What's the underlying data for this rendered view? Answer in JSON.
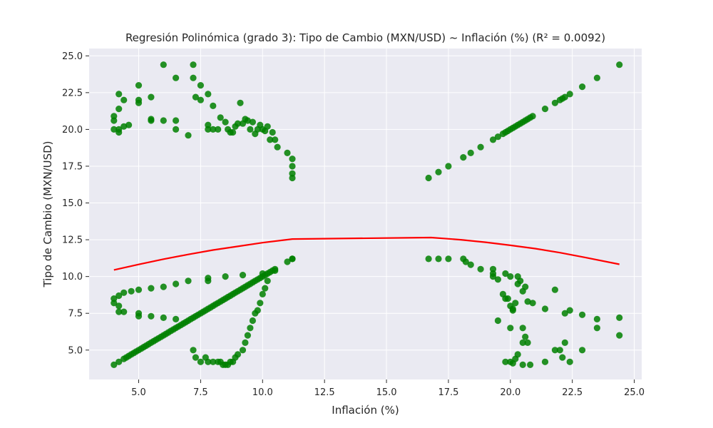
{
  "chart_data": {
    "type": "scatter",
    "title": "Regresión Polinómica (grado 3): Tipo de Cambio (MXN/USD) ~ Inflación (%) (R² = 0.0092)",
    "xlabel": "Inflación (%)",
    "ylabel": "Tipo de Cambio (MXN/USD)",
    "xlim": [
      3.0,
      25.3
    ],
    "ylim": [
      3.0,
      25.5
    ],
    "xticks": [
      5.0,
      7.5,
      10.0,
      12.5,
      15.0,
      17.5,
      20.0,
      22.5,
      25.0
    ],
    "xtick_labels": [
      "5.0",
      "7.5",
      "10.0",
      "12.5",
      "15.0",
      "17.5",
      "20.0",
      "22.5",
      "25.0"
    ],
    "yticks": [
      5.0,
      7.5,
      10.0,
      12.5,
      15.0,
      17.5,
      20.0,
      22.5,
      25.0
    ],
    "ytick_labels": [
      "5.0",
      "7.5",
      "10.0",
      "12.5",
      "15.0",
      "17.5",
      "20.0",
      "22.5",
      "25.0"
    ],
    "grid": true,
    "colors": {
      "background": "#eaeaf2",
      "grid": "#ffffff",
      "points": "#008000",
      "curve": "#ff0000"
    },
    "series": [
      {
        "kind": "scatter",
        "points": [
          [
            4.0,
            4.0
          ],
          [
            4.2,
            4.2
          ],
          [
            4.4,
            4.4
          ],
          [
            4.5,
            4.5
          ],
          [
            4.6,
            4.6
          ],
          [
            4.7,
            4.7
          ],
          [
            4.8,
            4.8
          ],
          [
            4.9,
            4.9
          ],
          [
            5.0,
            5.0
          ],
          [
            5.1,
            5.1
          ],
          [
            5.2,
            5.2
          ],
          [
            5.3,
            5.3
          ],
          [
            5.4,
            5.4
          ],
          [
            5.5,
            5.5
          ],
          [
            5.6,
            5.6
          ],
          [
            5.7,
            5.7
          ],
          [
            5.8,
            5.8
          ],
          [
            5.9,
            5.9
          ],
          [
            6.0,
            6.0
          ],
          [
            6.1,
            6.1
          ],
          [
            6.2,
            6.2
          ],
          [
            6.3,
            6.3
          ],
          [
            6.4,
            6.4
          ],
          [
            6.5,
            6.5
          ],
          [
            6.6,
            6.6
          ],
          [
            6.7,
            6.7
          ],
          [
            6.8,
            6.8
          ],
          [
            6.9,
            6.9
          ],
          [
            7.0,
            7.0
          ],
          [
            7.1,
            7.1
          ],
          [
            7.2,
            7.2
          ],
          [
            7.3,
            7.3
          ],
          [
            7.4,
            7.4
          ],
          [
            7.5,
            7.5
          ],
          [
            7.6,
            7.6
          ],
          [
            7.7,
            7.7
          ],
          [
            7.8,
            7.8
          ],
          [
            7.9,
            7.9
          ],
          [
            8.0,
            8.0
          ],
          [
            8.1,
            8.1
          ],
          [
            8.2,
            8.2
          ],
          [
            8.3,
            8.3
          ],
          [
            8.4,
            8.4
          ],
          [
            8.5,
            8.5
          ],
          [
            8.6,
            8.6
          ],
          [
            8.7,
            8.7
          ],
          [
            8.8,
            8.8
          ],
          [
            8.9,
            8.9
          ],
          [
            9.0,
            9.0
          ],
          [
            9.1,
            9.1
          ],
          [
            9.2,
            9.2
          ],
          [
            9.3,
            9.3
          ],
          [
            9.4,
            9.4
          ],
          [
            9.5,
            9.5
          ],
          [
            9.6,
            9.6
          ],
          [
            9.7,
            9.7
          ],
          [
            9.8,
            9.8
          ],
          [
            9.9,
            9.9
          ],
          [
            10.0,
            10.0
          ],
          [
            10.1,
            10.1
          ],
          [
            10.2,
            10.2
          ],
          [
            10.3,
            10.3
          ],
          [
            10.4,
            10.4
          ],
          [
            10.5,
            10.5
          ],
          [
            11.0,
            11.0
          ],
          [
            11.2,
            11.2
          ],
          [
            4.0,
            8.5
          ],
          [
            4.0,
            8.2
          ],
          [
            4.2,
            8.0
          ],
          [
            4.2,
            7.6
          ],
          [
            4.2,
            8.7
          ],
          [
            4.4,
            7.6
          ],
          [
            4.4,
            8.9
          ],
          [
            4.7,
            9.0
          ],
          [
            5.0,
            9.1
          ],
          [
            5.0,
            7.5
          ],
          [
            5.0,
            7.3
          ],
          [
            5.5,
            9.2
          ],
          [
            5.5,
            7.3
          ],
          [
            6.0,
            9.3
          ],
          [
            6.0,
            7.2
          ],
          [
            6.5,
            9.5
          ],
          [
            6.5,
            7.1
          ],
          [
            7.0,
            9.7
          ],
          [
            7.8,
            9.9
          ],
          [
            7.8,
            9.7
          ],
          [
            8.5,
            10.0
          ],
          [
            9.2,
            10.1
          ],
          [
            10.0,
            10.2
          ],
          [
            10.5,
            10.4
          ],
          [
            11.2,
            11.2
          ],
          [
            7.2,
            5.0
          ],
          [
            7.3,
            4.5
          ],
          [
            7.5,
            4.2
          ],
          [
            7.7,
            4.5
          ],
          [
            7.8,
            4.2
          ],
          [
            8.0,
            4.2
          ],
          [
            8.2,
            4.2
          ],
          [
            8.3,
            4.2
          ],
          [
            8.4,
            4.0
          ],
          [
            8.5,
            4.0
          ],
          [
            8.6,
            4.0
          ],
          [
            8.7,
            4.2
          ],
          [
            8.8,
            4.2
          ],
          [
            8.9,
            4.5
          ],
          [
            9.0,
            4.7
          ],
          [
            9.2,
            5.0
          ],
          [
            9.3,
            5.5
          ],
          [
            9.4,
            6.0
          ],
          [
            9.5,
            6.5
          ],
          [
            9.6,
            7.0
          ],
          [
            9.7,
            7.5
          ],
          [
            9.8,
            7.7
          ],
          [
            9.9,
            8.2
          ],
          [
            10.0,
            8.8
          ],
          [
            10.1,
            9.2
          ],
          [
            10.2,
            9.7
          ],
          [
            4.0,
            20.0
          ],
          [
            4.0,
            20.6
          ],
          [
            4.0,
            20.9
          ],
          [
            4.2,
            19.8
          ],
          [
            4.2,
            20.0
          ],
          [
            4.2,
            21.4
          ],
          [
            4.2,
            22.4
          ],
          [
            4.4,
            20.2
          ],
          [
            4.4,
            22.0
          ],
          [
            4.6,
            20.3
          ],
          [
            5.0,
            23.0
          ],
          [
            5.0,
            22.0
          ],
          [
            5.0,
            21.8
          ],
          [
            5.5,
            22.2
          ],
          [
            5.5,
            20.7
          ],
          [
            5.5,
            20.6
          ],
          [
            6.0,
            24.4
          ],
          [
            6.0,
            20.6
          ],
          [
            6.5,
            23.5
          ],
          [
            6.5,
            20.6
          ],
          [
            6.5,
            20.0
          ],
          [
            7.0,
            19.6
          ],
          [
            7.2,
            24.4
          ],
          [
            7.2,
            23.5
          ],
          [
            7.3,
            22.2
          ],
          [
            7.5,
            23.0
          ],
          [
            7.5,
            22.0
          ],
          [
            7.8,
            22.4
          ],
          [
            7.8,
            20.3
          ],
          [
            7.8,
            20.0
          ],
          [
            8.0,
            21.6
          ],
          [
            8.0,
            20.0
          ],
          [
            8.2,
            20.0
          ],
          [
            8.3,
            20.8
          ],
          [
            8.5,
            20.5
          ],
          [
            8.6,
            20.0
          ],
          [
            8.7,
            19.8
          ],
          [
            8.8,
            19.8
          ],
          [
            8.9,
            20.2
          ],
          [
            9.0,
            20.4
          ],
          [
            9.1,
            21.8
          ],
          [
            9.2,
            20.4
          ],
          [
            9.3,
            20.7
          ],
          [
            9.4,
            20.6
          ],
          [
            9.5,
            20.0
          ],
          [
            9.6,
            20.5
          ],
          [
            9.7,
            19.7
          ],
          [
            9.8,
            20.0
          ],
          [
            9.9,
            20.3
          ],
          [
            10.0,
            20.0
          ],
          [
            10.1,
            19.9
          ],
          [
            10.2,
            20.2
          ],
          [
            10.3,
            19.3
          ],
          [
            10.4,
            19.8
          ],
          [
            10.5,
            19.3
          ],
          [
            10.6,
            18.8
          ],
          [
            11.0,
            18.4
          ],
          [
            11.2,
            18.0
          ],
          [
            11.2,
            17.5
          ],
          [
            11.2,
            17.0
          ],
          [
            11.2,
            16.7
          ],
          [
            16.7,
            16.7
          ],
          [
            17.1,
            17.1
          ],
          [
            17.5,
            17.5
          ],
          [
            18.1,
            18.1
          ],
          [
            18.4,
            18.4
          ],
          [
            18.8,
            18.8
          ],
          [
            19.3,
            19.3
          ],
          [
            19.5,
            19.5
          ],
          [
            19.7,
            19.7
          ],
          [
            19.8,
            19.8
          ],
          [
            19.9,
            19.9
          ],
          [
            20.0,
            20.0
          ],
          [
            20.1,
            20.1
          ],
          [
            20.2,
            20.2
          ],
          [
            20.3,
            20.3
          ],
          [
            20.4,
            20.4
          ],
          [
            20.5,
            20.5
          ],
          [
            20.6,
            20.6
          ],
          [
            20.7,
            20.7
          ],
          [
            20.8,
            20.8
          ],
          [
            20.9,
            20.9
          ],
          [
            21.4,
            21.4
          ],
          [
            21.8,
            21.8
          ],
          [
            22.0,
            22.0
          ],
          [
            22.1,
            22.1
          ],
          [
            22.2,
            22.2
          ],
          [
            22.4,
            22.4
          ],
          [
            22.9,
            22.9
          ],
          [
            23.5,
            23.5
          ],
          [
            24.4,
            24.4
          ],
          [
            16.7,
            11.2
          ],
          [
            17.1,
            11.2
          ],
          [
            17.5,
            11.2
          ],
          [
            18.1,
            11.2
          ],
          [
            18.2,
            11.0
          ],
          [
            18.4,
            10.8
          ],
          [
            18.8,
            10.5
          ],
          [
            19.3,
            10.5
          ],
          [
            19.3,
            10.2
          ],
          [
            19.3,
            10.0
          ],
          [
            19.5,
            9.8
          ],
          [
            19.7,
            8.8
          ],
          [
            19.8,
            10.2
          ],
          [
            19.9,
            8.5
          ],
          [
            20.0,
            10.0
          ],
          [
            20.0,
            8.0
          ],
          [
            20.1,
            7.8
          ],
          [
            20.2,
            8.2
          ],
          [
            20.3,
            10.0
          ],
          [
            20.3,
            9.5
          ],
          [
            20.4,
            9.7
          ],
          [
            20.5,
            9.0
          ],
          [
            20.6,
            9.3
          ],
          [
            20.7,
            8.3
          ],
          [
            20.9,
            8.2
          ],
          [
            21.4,
            7.8
          ],
          [
            21.8,
            9.1
          ],
          [
            22.2,
            7.5
          ],
          [
            22.4,
            7.7
          ],
          [
            22.9,
            7.4
          ],
          [
            23.5,
            7.1
          ],
          [
            24.4,
            7.2
          ],
          [
            19.5,
            7.0
          ],
          [
            19.8,
            8.5
          ],
          [
            20.1,
            7.7
          ],
          [
            20.0,
            6.5
          ],
          [
            20.5,
            6.5
          ],
          [
            20.6,
            5.9
          ],
          [
            20.5,
            5.5
          ],
          [
            20.7,
            5.5
          ],
          [
            19.8,
            4.2
          ],
          [
            20.0,
            4.2
          ],
          [
            20.1,
            4.1
          ],
          [
            20.2,
            4.4
          ],
          [
            20.3,
            4.7
          ],
          [
            20.5,
            4.0
          ],
          [
            20.8,
            4.0
          ],
          [
            21.4,
            4.2
          ],
          [
            21.8,
            5.0
          ],
          [
            22.0,
            5.0
          ],
          [
            22.1,
            4.5
          ],
          [
            22.2,
            5.5
          ],
          [
            22.4,
            4.2
          ],
          [
            22.9,
            5.0
          ],
          [
            23.5,
            6.5
          ],
          [
            24.4,
            6.0
          ]
        ]
      },
      {
        "kind": "line",
        "points": [
          [
            4.0,
            10.45
          ],
          [
            5.0,
            10.82
          ],
          [
            6.0,
            11.18
          ],
          [
            7.0,
            11.5
          ],
          [
            8.0,
            11.8
          ],
          [
            9.0,
            12.05
          ],
          [
            10.0,
            12.3
          ],
          [
            11.2,
            12.55
          ],
          [
            16.8,
            12.65
          ],
          [
            18.0,
            12.5
          ],
          [
            19.0,
            12.33
          ],
          [
            20.0,
            12.12
          ],
          [
            21.0,
            11.9
          ],
          [
            22.0,
            11.62
          ],
          [
            23.0,
            11.3
          ],
          [
            24.4,
            10.83
          ]
        ]
      }
    ]
  }
}
